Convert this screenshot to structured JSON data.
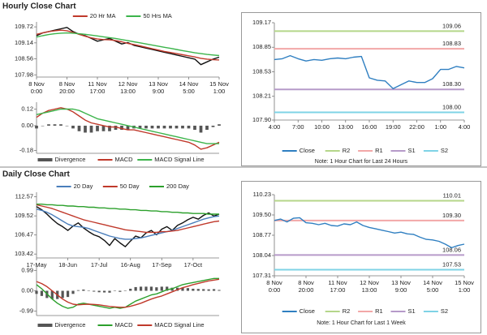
{
  "headings": [
    "Hourly Close Chart",
    "Daily Close Chart"
  ],
  "chart_data": [
    {
      "type": "line",
      "xlim": [
        0,
        30
      ],
      "ylim": [
        107.9,
        109.9
      ],
      "yticks": [
        107.98,
        108.56,
        109.14,
        109.72
      ],
      "xticks": [
        {
          "value": 0,
          "label": "8 Nov 0:00"
        },
        {
          "value": 5,
          "label": "8 Nov 20:00"
        },
        {
          "value": 10,
          "label": "11 Nov 17:00"
        },
        {
          "value": 15,
          "label": "12 Nov 13:00"
        },
        {
          "value": 20,
          "label": "13 Nov 9:00"
        },
        {
          "value": 25,
          "label": "14 Nov 5:00"
        },
        {
          "value": 30,
          "label": "15 Nov 1:00"
        }
      ],
      "legend": "top",
      "series": [
        {
          "color": "#111111",
          "values": [
            109.4,
            109.5,
            109.55,
            109.6,
            109.65,
            109.7,
            109.55,
            109.45,
            109.4,
            109.3,
            109.2,
            109.25,
            109.3,
            109.2,
            109.1,
            109.15,
            109.05,
            109.0,
            108.95,
            108.9,
            108.85,
            108.8,
            108.75,
            108.7,
            108.65,
            108.6,
            108.55,
            108.35,
            108.45,
            108.55,
            108.62
          ]
        },
        {
          "name": "20 Hr MA",
          "color": "#c0392b",
          "values": [
            109.45,
            109.5,
            109.55,
            109.58,
            109.6,
            109.58,
            109.52,
            109.45,
            109.38,
            109.32,
            109.28,
            109.26,
            109.25,
            109.22,
            109.18,
            109.12,
            109.08,
            109.03,
            108.98,
            108.93,
            108.88,
            108.83,
            108.79,
            108.75,
            108.71,
            108.67,
            108.63,
            108.58,
            108.55,
            108.53,
            108.52
          ]
        },
        {
          "name": "50 Hrs MA",
          "color": "#3cb44b",
          "values": [
            109.35,
            109.4,
            109.44,
            109.47,
            109.49,
            109.5,
            109.49,
            109.47,
            109.45,
            109.42,
            109.39,
            109.36,
            109.33,
            109.3,
            109.26,
            109.22,
            109.18,
            109.14,
            109.1,
            109.06,
            109.02,
            108.98,
            108.94,
            108.9,
            108.86,
            108.82,
            108.78,
            108.75,
            108.72,
            108.7,
            108.68
          ]
        }
      ]
    },
    {
      "type": "line",
      "xlim": [
        0,
        30
      ],
      "ylim": [
        -0.2,
        0.17
      ],
      "yticks": [
        0.12,
        {
          "value": 0,
          "label": "0.00"
        },
        -0.18
      ],
      "legend": "bottom",
      "series": [
        {
          "name": "Divergence",
          "kind": "bar",
          "color": "#555555",
          "values": [
            -0.02,
            0,
            0.01,
            0.01,
            0.01,
            0,
            -0.02,
            -0.04,
            -0.05,
            -0.05,
            -0.04,
            -0.04,
            -0.04,
            -0.03,
            -0.03,
            -0.03,
            -0.02,
            -0.02,
            -0.02,
            -0.02,
            -0.02,
            -0.02,
            -0.02,
            -0.02,
            -0.02,
            -0.02,
            -0.03,
            -0.05,
            -0.03,
            -0.01,
            0.01
          ]
        },
        {
          "name": "MACD",
          "color": "#c0392b",
          "values": [
            0.06,
            0.09,
            0.11,
            0.12,
            0.13,
            0.12,
            0.1,
            0.07,
            0.04,
            0.02,
            0.01,
            0.0,
            -0.01,
            -0.01,
            -0.02,
            -0.03,
            -0.03,
            -0.04,
            -0.05,
            -0.06,
            -0.07,
            -0.08,
            -0.09,
            -0.1,
            -0.11,
            -0.12,
            -0.14,
            -0.17,
            -0.16,
            -0.14,
            -0.12
          ]
        },
        {
          "name": "MACD Signal Line",
          "color": "#3cb44b",
          "values": [
            0.08,
            0.09,
            0.1,
            0.11,
            0.12,
            0.12,
            0.12,
            0.11,
            0.09,
            0.07,
            0.05,
            0.04,
            0.03,
            0.02,
            0.01,
            0.0,
            -0.01,
            -0.02,
            -0.03,
            -0.04,
            -0.05,
            -0.06,
            -0.07,
            -0.08,
            -0.09,
            -0.1,
            -0.11,
            -0.12,
            -0.13,
            -0.13,
            -0.13
          ]
        }
      ]
    },
    {
      "type": "line",
      "xlim": [
        0,
        24
      ],
      "ylim": [
        107.9,
        109.17
      ],
      "yticks": [
        {
          "value": 107.9,
          "label": "107.90"
        },
        108.21,
        108.53,
        108.85,
        109.17
      ],
      "xticks": [
        {
          "value": 0,
          "label": "4:00"
        },
        {
          "value": 3,
          "label": "7:00"
        },
        {
          "value": 6,
          "label": "10:00"
        },
        {
          "value": 9,
          "label": "13:00"
        },
        {
          "value": 12,
          "label": "16:00"
        },
        {
          "value": 15,
          "label": "19:00"
        },
        {
          "value": 18,
          "label": "22:00"
        },
        {
          "value": 21,
          "label": "1:00"
        },
        {
          "value": 24,
          "label": "4:00"
        }
      ],
      "legend": "bottom",
      "note": "Note: 1 Hour Chart for Last 24 Hours",
      "series": [
        {
          "name": "Close",
          "color": "#2f7fc1",
          "values": [
            108.69,
            108.7,
            108.74,
            108.7,
            108.67,
            108.69,
            108.68,
            108.7,
            108.71,
            108.7,
            108.72,
            108.73,
            108.45,
            108.42,
            108.41,
            108.31,
            108.36,
            108.41,
            108.39,
            108.39,
            108.44,
            108.56,
            108.56,
            108.6,
            108.58
          ]
        }
      ],
      "levels": [
        {
          "name": "R2",
          "color": "#b5d68a",
          "value": 109.06,
          "value_label": "109.06"
        },
        {
          "name": "R1",
          "color": "#f2a7a7",
          "value": 108.83,
          "value_label": "108.83"
        },
        {
          "name": "S1",
          "color": "#b69ac9",
          "value": 108.3,
          "value_label": "108.30"
        },
        {
          "name": "S2",
          "color": "#7fd3e6",
          "value": 108.0,
          "value_label": "108.00"
        }
      ]
    },
    {
      "type": "line",
      "xlim": [
        0,
        35
      ],
      "ylim": [
        102.8,
        113.3
      ],
      "yticks": [
        103.42,
        106.47,
        109.52,
        112.57
      ],
      "xticks": [
        {
          "value": 0,
          "label": "17-May"
        },
        {
          "value": 6,
          "label": "18-Jun"
        },
        {
          "value": 12,
          "label": "17-Jul"
        },
        {
          "value": 18,
          "label": "16-Aug"
        },
        {
          "value": 24,
          "label": "17-Sep"
        },
        {
          "value": 30,
          "label": "17-Oct"
        }
      ],
      "legend": "top",
      "series": [
        {
          "color": "#111111",
          "values": [
            111.0,
            110.5,
            109.8,
            109.0,
            108.3,
            107.8,
            107.2,
            107.9,
            108.4,
            107.6,
            107.0,
            106.5,
            106.2,
            105.6,
            104.8,
            105.9,
            105.2,
            104.6,
            105.5,
            106.3,
            106.0,
            106.8,
            107.2,
            106.5,
            107.4,
            107.8,
            107.2,
            108.0,
            108.4,
            108.9,
            109.3,
            109.0,
            109.6,
            110.0,
            109.5,
            109.8
          ]
        },
        {
          "name": "20 Day",
          "color": "#4a7ebb",
          "values": [
            110.6,
            110.4,
            110.1,
            109.7,
            109.2,
            108.7,
            108.2,
            107.9,
            107.8,
            107.7,
            107.5,
            107.2,
            106.9,
            106.6,
            106.3,
            106.1,
            105.9,
            105.8,
            105.8,
            105.9,
            106.0,
            106.2,
            106.4,
            106.6,
            106.8,
            107.0,
            107.2,
            107.5,
            107.8,
            108.1,
            108.4,
            108.7,
            109.0,
            109.2,
            109.4,
            109.5
          ]
        },
        {
          "name": "50 Day",
          "color": "#c0392b",
          "values": [
            111.3,
            111.1,
            110.9,
            110.7,
            110.4,
            110.1,
            109.8,
            109.5,
            109.2,
            108.9,
            108.7,
            108.5,
            108.3,
            108.1,
            107.9,
            107.7,
            107.5,
            107.3,
            107.2,
            107.1,
            107.0,
            106.9,
            106.9,
            106.9,
            107.0,
            107.0,
            107.1,
            107.2,
            107.4,
            107.6,
            107.8,
            108.0,
            108.2,
            108.4,
            108.6,
            108.7
          ]
        },
        {
          "name": "200 Day",
          "color": "#2ca02c",
          "values": [
            111.4,
            111.4,
            111.3,
            111.3,
            111.2,
            111.2,
            111.1,
            111.1,
            111.0,
            111.0,
            110.9,
            110.9,
            110.8,
            110.8,
            110.7,
            110.7,
            110.6,
            110.6,
            110.5,
            110.5,
            110.4,
            110.4,
            110.3,
            110.3,
            110.2,
            110.2,
            110.1,
            110.1,
            110.0,
            110.0,
            109.9,
            109.9,
            109.9,
            109.8,
            109.8,
            109.8
          ]
        }
      ]
    },
    {
      "type": "line",
      "xlim": [
        0,
        35
      ],
      "ylim": [
        -1.2,
        1.2
      ],
      "yticks": [
        0.99,
        {
          "value": 0,
          "label": "0.00"
        },
        -0.99
      ],
      "legend": "bottom",
      "series": [
        {
          "name": "Divergence",
          "kind": "bar",
          "color": "#555555",
          "values": [
            -0.15,
            -0.25,
            -0.35,
            -0.4,
            -0.4,
            -0.35,
            -0.3,
            -0.15,
            0.03,
            0.06,
            0.0,
            -0.04,
            -0.07,
            -0.08,
            -0.09,
            -0.02,
            -0.05,
            0.0,
            0.1,
            0.18,
            0.2,
            0.2,
            0.2,
            0.17,
            0.2,
            0.2,
            0.15,
            0.15,
            0.15,
            0.13,
            0.1,
            0.09,
            0.08,
            0.07,
            0.08,
            0.04
          ]
        },
        {
          "name": "MACD",
          "color": "#2ca02c",
          "values": [
            0.3,
            0.1,
            -0.15,
            -0.4,
            -0.6,
            -0.75,
            -0.85,
            -0.8,
            -0.65,
            -0.6,
            -0.65,
            -0.7,
            -0.75,
            -0.8,
            -0.85,
            -0.8,
            -0.85,
            -0.8,
            -0.65,
            -0.5,
            -0.4,
            -0.3,
            -0.2,
            -0.15,
            -0.05,
            0.05,
            0.1,
            0.2,
            0.3,
            0.35,
            0.4,
            0.45,
            0.5,
            0.55,
            0.6,
            0.6
          ]
        },
        {
          "name": "MACD Signal Line",
          "color": "#c0392b",
          "values": [
            0.45,
            0.35,
            0.2,
            0.0,
            -0.2,
            -0.4,
            -0.55,
            -0.65,
            -0.68,
            -0.66,
            -0.65,
            -0.66,
            -0.68,
            -0.72,
            -0.76,
            -0.78,
            -0.8,
            -0.8,
            -0.75,
            -0.68,
            -0.6,
            -0.5,
            -0.4,
            -0.32,
            -0.25,
            -0.15,
            -0.05,
            0.05,
            0.15,
            0.22,
            0.3,
            0.36,
            0.42,
            0.48,
            0.52,
            0.56
          ]
        }
      ]
    },
    {
      "type": "line",
      "xlim": [
        0,
        30
      ],
      "ylim": [
        107.31,
        110.23
      ],
      "yticks": [
        107.31,
        108.04,
        108.77,
        {
          "value": 109.5,
          "label": "109.50"
        },
        110.23
      ],
      "xticks": [
        {
          "value": 0,
          "label": "8 Nov 0:00"
        },
        {
          "value": 5,
          "label": "8 Nov 20:00"
        },
        {
          "value": 10,
          "label": "11 Nov 17:00"
        },
        {
          "value": 15,
          "label": "12 Nov 13:00"
        },
        {
          "value": 20,
          "label": "13 Nov 9:00"
        },
        {
          "value": 25,
          "label": "14 Nov 5:00"
        },
        {
          "value": 30,
          "label": "15 Nov 1:00"
        }
      ],
      "legend": "bottom",
      "note": "Note: 1 Hour Chart for Last 1 Week",
      "series": [
        {
          "name": "Close",
          "color": "#2f7fc1",
          "values": [
            109.3,
            109.35,
            109.25,
            109.38,
            109.4,
            109.22,
            109.2,
            109.15,
            109.2,
            109.12,
            109.1,
            109.18,
            109.15,
            109.25,
            109.12,
            109.05,
            109.0,
            108.95,
            108.9,
            108.85,
            108.88,
            108.82,
            108.8,
            108.7,
            108.62,
            108.6,
            108.55,
            108.45,
            108.32,
            108.4,
            108.45
          ]
        }
      ],
      "levels": [
        {
          "name": "R2",
          "color": "#b5d68a",
          "value": 110.01,
          "value_label": "110.01"
        },
        {
          "name": "R1",
          "color": "#f2a7a7",
          "value": 109.3,
          "value_label": "109.30"
        },
        {
          "name": "S1",
          "color": "#b69ac9",
          "value": 108.06,
          "value_label": "108.06"
        },
        {
          "name": "S2",
          "color": "#7fd3e6",
          "value": 107.53,
          "value_label": "107.53"
        }
      ]
    }
  ]
}
